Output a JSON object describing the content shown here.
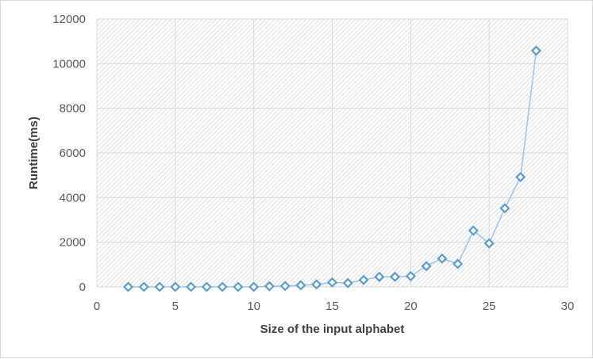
{
  "chart_data": {
    "type": "scatter",
    "title": "",
    "xlabel": "Size of the input alphabet",
    "ylabel": "Runtime(ms)",
    "xlim": [
      0,
      30
    ],
    "ylim": [
      0,
      12000
    ],
    "x_ticks": [
      "0",
      "5",
      "10",
      "15",
      "20",
      "25",
      "30"
    ],
    "y_ticks": [
      "0",
      "2000",
      "4000",
      "6000",
      "8000",
      "10000",
      "12000"
    ],
    "grid": true,
    "legend": "none",
    "marker": "diamond",
    "line_connected": true,
    "color": "#5b9bd5",
    "series": [
      {
        "x": [
          2,
          3,
          4,
          5,
          6,
          7,
          8,
          9,
          10,
          11,
          12,
          13,
          14,
          15,
          16,
          17,
          18,
          19,
          20,
          21,
          22,
          23,
          24,
          25,
          26,
          27,
          28
        ],
        "y": [
          0,
          0,
          0,
          0,
          0,
          0,
          0,
          0,
          0,
          30,
          40,
          70,
          110,
          200,
          170,
          310,
          450,
          450,
          480,
          930,
          1270,
          1030,
          2520,
          1950,
          3520,
          4920,
          10580
        ]
      }
    ]
  }
}
